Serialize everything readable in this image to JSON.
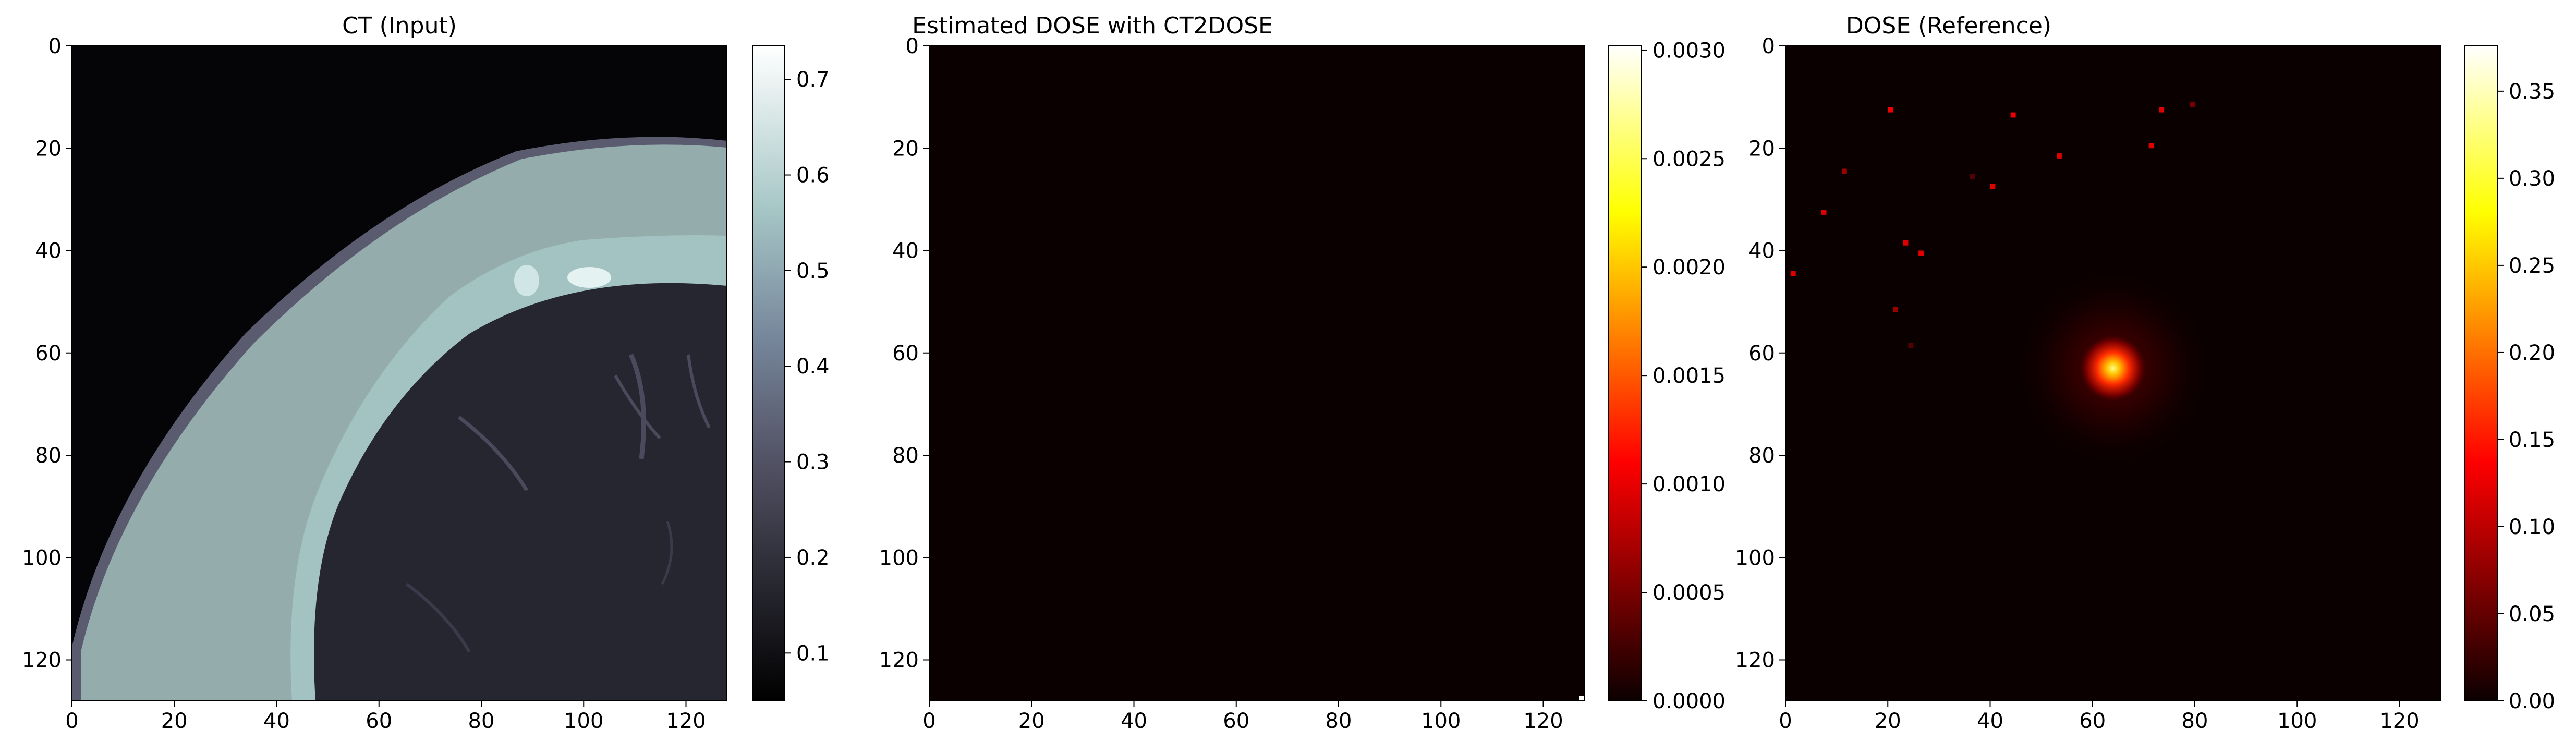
{
  "chart_data": [
    {
      "type": "heatmap",
      "title": "CT (Input)",
      "colormap": "bone",
      "xlim": [
        0,
        128
      ],
      "ylim": [
        128,
        0
      ],
      "x_ticks": [
        "0",
        "20",
        "40",
        "60",
        "80",
        "100",
        "120"
      ],
      "y_ticks": [
        "0",
        "20",
        "40",
        "60",
        "80",
        "100",
        "120"
      ],
      "colorbar": {
        "range": [
          0.05,
          0.735
        ],
        "ticks": [
          0.1,
          0.2,
          0.3,
          0.4,
          0.5,
          0.6,
          0.7
        ],
        "tick_labels": [
          "0.1",
          "0.2",
          "0.3",
          "0.4",
          "0.5",
          "0.6",
          "0.7"
        ]
      }
    },
    {
      "type": "heatmap",
      "title": "Estimated DOSE with CT2DOSE",
      "colormap": "hot",
      "xlim": [
        0,
        128
      ],
      "ylim": [
        128,
        0
      ],
      "x_ticks": [
        "0",
        "20",
        "40",
        "60",
        "80",
        "100",
        "120"
      ],
      "y_ticks": [
        "0",
        "20",
        "40",
        "60",
        "80",
        "100",
        "120"
      ],
      "hot_pixels": [
        {
          "x": 127,
          "y": 127,
          "value": 0.003
        }
      ],
      "colorbar": {
        "range": [
          0,
          0.00302
        ],
        "ticks": [
          0,
          0.0005,
          0.001,
          0.0015,
          0.002,
          0.0025,
          0.003
        ],
        "tick_labels": [
          "0.0000",
          "0.0005",
          "0.0010",
          "0.0015",
          "0.0020",
          "0.0025",
          "0.0030"
        ]
      }
    },
    {
      "type": "heatmap",
      "title": "DOSE (Reference)",
      "colormap": "hot",
      "xlim": [
        0,
        128
      ],
      "ylim": [
        128,
        0
      ],
      "x_ticks": [
        "0",
        "20",
        "40",
        "60",
        "80",
        "100",
        "120"
      ],
      "y_ticks": [
        "0",
        "20",
        "40",
        "60",
        "80",
        "100",
        "120"
      ],
      "hotspot": {
        "x": 64,
        "y": 63,
        "peak_value": 0.375
      },
      "scattered_points": [
        {
          "x": 20,
          "y": 12,
          "value": 0.13
        },
        {
          "x": 44,
          "y": 13,
          "value": 0.13
        },
        {
          "x": 73,
          "y": 12,
          "value": 0.12
        },
        {
          "x": 79,
          "y": 11,
          "value": 0.06
        },
        {
          "x": 71,
          "y": 19,
          "value": 0.12
        },
        {
          "x": 53,
          "y": 21,
          "value": 0.12
        },
        {
          "x": 11,
          "y": 24,
          "value": 0.08
        },
        {
          "x": 40,
          "y": 27,
          "value": 0.12
        },
        {
          "x": 36,
          "y": 25,
          "value": 0.04
        },
        {
          "x": 7,
          "y": 32,
          "value": 0.12
        },
        {
          "x": 23,
          "y": 38,
          "value": 0.12
        },
        {
          "x": 26,
          "y": 40,
          "value": 0.12
        },
        {
          "x": 1,
          "y": 44,
          "value": 0.12
        },
        {
          "x": 21,
          "y": 51,
          "value": 0.08
        },
        {
          "x": 24,
          "y": 58,
          "value": 0.04
        }
      ],
      "colorbar": {
        "range": [
          0,
          0.376
        ],
        "ticks": [
          0,
          0.05,
          0.1,
          0.15,
          0.2,
          0.25,
          0.3,
          0.35
        ],
        "tick_labels": [
          "0.00",
          "0.05",
          "0.10",
          "0.15",
          "0.20",
          "0.25",
          "0.30",
          "0.35"
        ]
      }
    }
  ]
}
